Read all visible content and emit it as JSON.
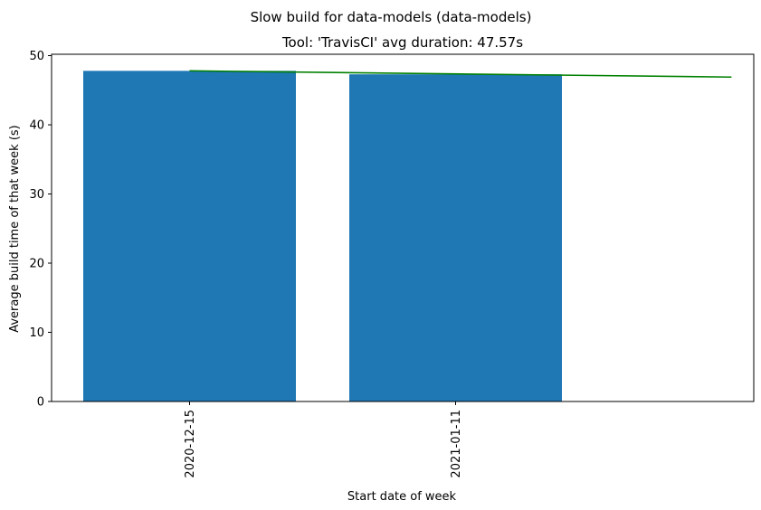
{
  "chart_data": {
    "type": "bar",
    "suptitle": "Slow build for data-models (data-models)",
    "title": "Tool: 'TravisCI' avg duration: 47.57s",
    "xlabel": "Start date of week",
    "ylabel": "Average build time of that week (s)",
    "categories": [
      "2020-12-15",
      "2021-01-11"
    ],
    "values": [
      47.8,
      47.3
    ],
    "ylim": [
      0,
      50.2
    ],
    "yticks": [
      0,
      10,
      20,
      30,
      40,
      50
    ],
    "bar_color": "#1f77b4",
    "trend_color": "#008000",
    "trend": {
      "x_start": "2020-12-15",
      "y_start": 47.8,
      "x_end": "2021-02-08",
      "y_end": 46.9
    },
    "grid": false,
    "legend": "none"
  }
}
